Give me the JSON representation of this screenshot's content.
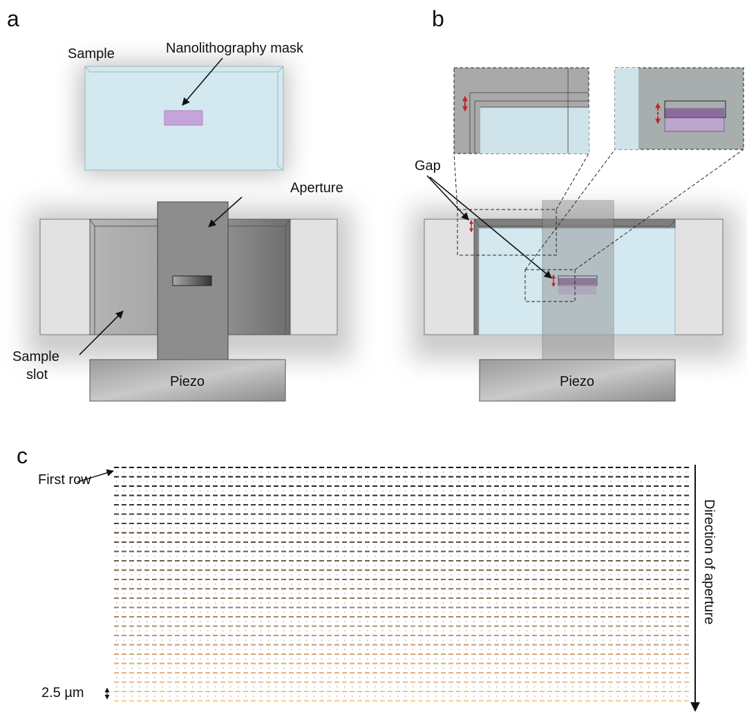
{
  "panel_a": {
    "label": "a",
    "sample": "Sample",
    "mask": "Nanolithography mask",
    "aperture": "Aperture",
    "sample_slot": [
      "Sample",
      "slot"
    ],
    "piezo": "Piezo"
  },
  "panel_b": {
    "label": "b",
    "gap": "Gap",
    "piezo": "Piezo"
  },
  "panel_c": {
    "label": "c",
    "first_row": "First row",
    "direction": "Direction of aperture",
    "spacing": "2.5 µm"
  }
}
